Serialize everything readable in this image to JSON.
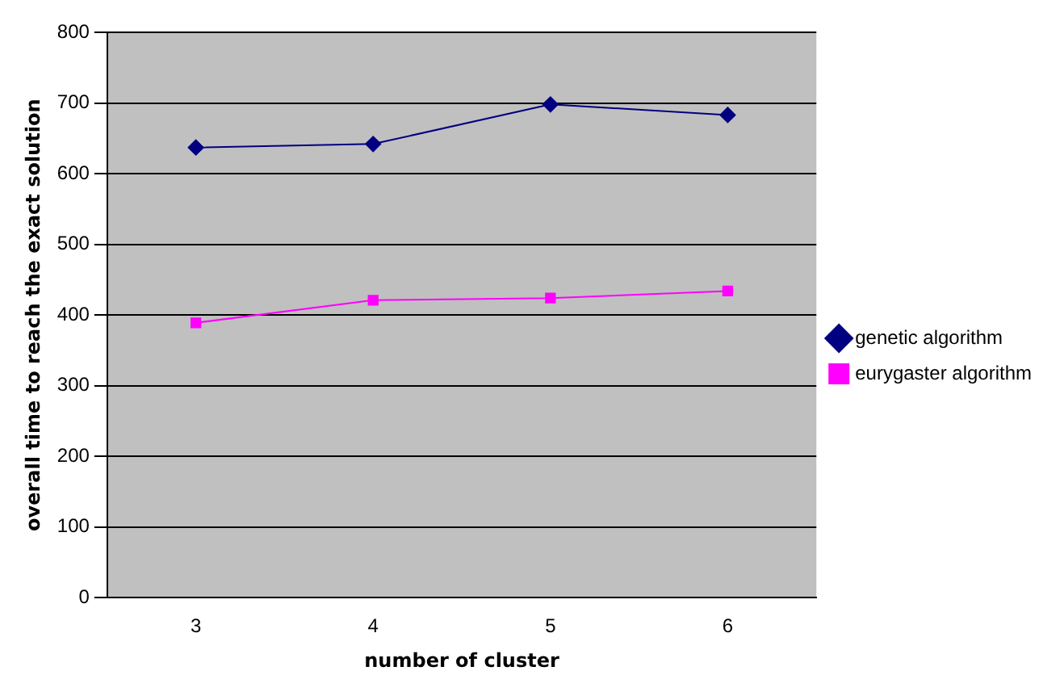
{
  "chart_data": {
    "type": "line",
    "xlabel": "number of cluster",
    "ylabel": "overall time to reach the exact solution",
    "categories": [
      "3",
      "4",
      "5",
      "6"
    ],
    "series": [
      {
        "name": "genetic algorithm",
        "color": "#000080",
        "marker": "diamond",
        "values": [
          637,
          642,
          698,
          683
        ]
      },
      {
        "name": "eurygaster algorithm",
        "color": "#ff00ff",
        "marker": "square",
        "values": [
          389,
          421,
          424,
          434
        ]
      }
    ],
    "ylim": [
      0,
      800
    ],
    "yticks": [
      0,
      100,
      200,
      300,
      400,
      500,
      600,
      700,
      800
    ],
    "grid": "y",
    "legend": "right"
  }
}
